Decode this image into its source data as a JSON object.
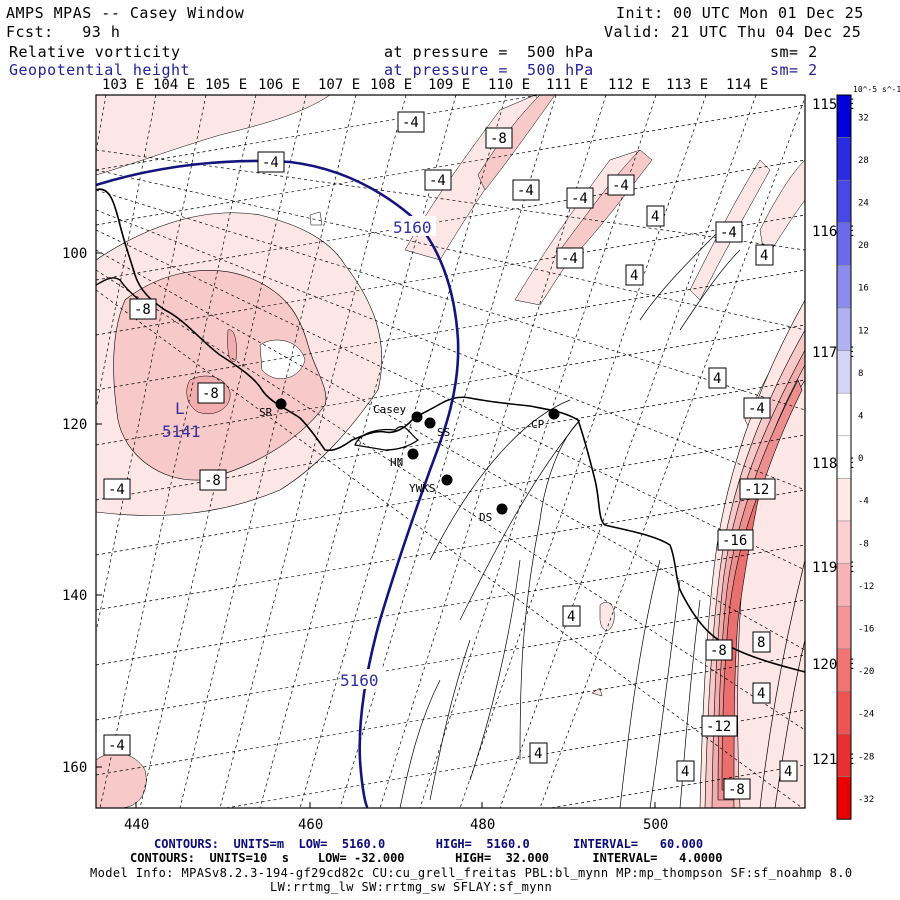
{
  "header": {
    "title": "AMPS MPAS -- Casey Window",
    "init": "Init: 00 UTC Mon 01 Dec 25",
    "forecast": "Fcst:   93 h",
    "valid": "Valid: 21 UTC Thu 04 Dec 25",
    "field1_name": "Relative vorticity",
    "field1_level": "at pressure =  500 hPa",
    "field1_sm": "sm= 2",
    "field2_name": "Geopotential height",
    "field2_level": "at pressure =  500 hPa",
    "field2_sm": "sm= 2"
  },
  "top_longitudes": [
    "103 E",
    "104 E",
    "105 E",
    "106 E",
    "107 E",
    "108 E",
    "109 E",
    "110 E",
    "111 E",
    "112 E",
    "113 E",
    "114 E"
  ],
  "right_longitudes": [
    "115 E",
    "116 E",
    "117 E",
    "118 E",
    "119 E",
    "120 E",
    "121 E"
  ],
  "x_ticks": [
    "440",
    "460",
    "480",
    "500"
  ],
  "y_ticks": [
    "100",
    "120",
    "140",
    "160"
  ],
  "colorbar": {
    "unit_label": "10^-5 s^-1",
    "levels": [
      "32",
      "28",
      "24",
      "20",
      "16",
      "12",
      "8",
      "4",
      "0",
      "-4",
      "-8",
      "-12",
      "-16",
      "-20",
      "-24",
      "-28",
      "-32"
    ],
    "colors": [
      "#0000d8",
      "#2a2ae0",
      "#4848e6",
      "#6a6aea",
      "#8c8cee",
      "#b0b0f2",
      "#d4d4f8",
      "#ffffff",
      "#ffffff",
      "#ffe8e8",
      "#fcd0d0",
      "#f8b4b4",
      "#f49494",
      "#f07474",
      "#ec5454",
      "#e83030",
      "#e80000"
    ]
  },
  "stations": [
    {
      "name": "Casey"
    },
    {
      "name": "SS"
    },
    {
      "name": "CP"
    },
    {
      "name": "SR"
    },
    {
      "name": "HN"
    },
    {
      "name": "YWKS"
    },
    {
      "name": "DS"
    }
  ],
  "height_labels": [
    "5160",
    "5160"
  ],
  "low_marker": {
    "letter": "L",
    "value": "5141"
  },
  "vort_labels": [
    "-4",
    "-8",
    "-4",
    "-4",
    "-4",
    "-4",
    "-4",
    "4",
    "-4",
    "-4",
    "4",
    "4",
    "-8",
    "-8",
    "-8",
    "-4",
    "4",
    "-4",
    "-12",
    "-16",
    "4",
    "-8",
    "8",
    "4",
    "-12",
    "4",
    "4",
    "4",
    "-4",
    "-8"
  ],
  "footer": {
    "contours1": "CONTOURS:  UNITS=m  LOW=  5160.0       HIGH=  5160.0      INTERVAL=   60.000",
    "contours2": "CONTOURS:  UNITS=10  s    LOW= -32.000       HIGH=  32.000      INTERVAL=   4.0000",
    "model_info": "Model Info: MPASv8.2.3-194-gf29cd82c CU:cu_grell_freitas PBL:bl_mynn MP:mp_thompson SF:sf_noahmp 8.0",
    "model_info2": "LW:rrtmg_lw SW:rrtmg_sw SFLAY:sf_mynn"
  }
}
